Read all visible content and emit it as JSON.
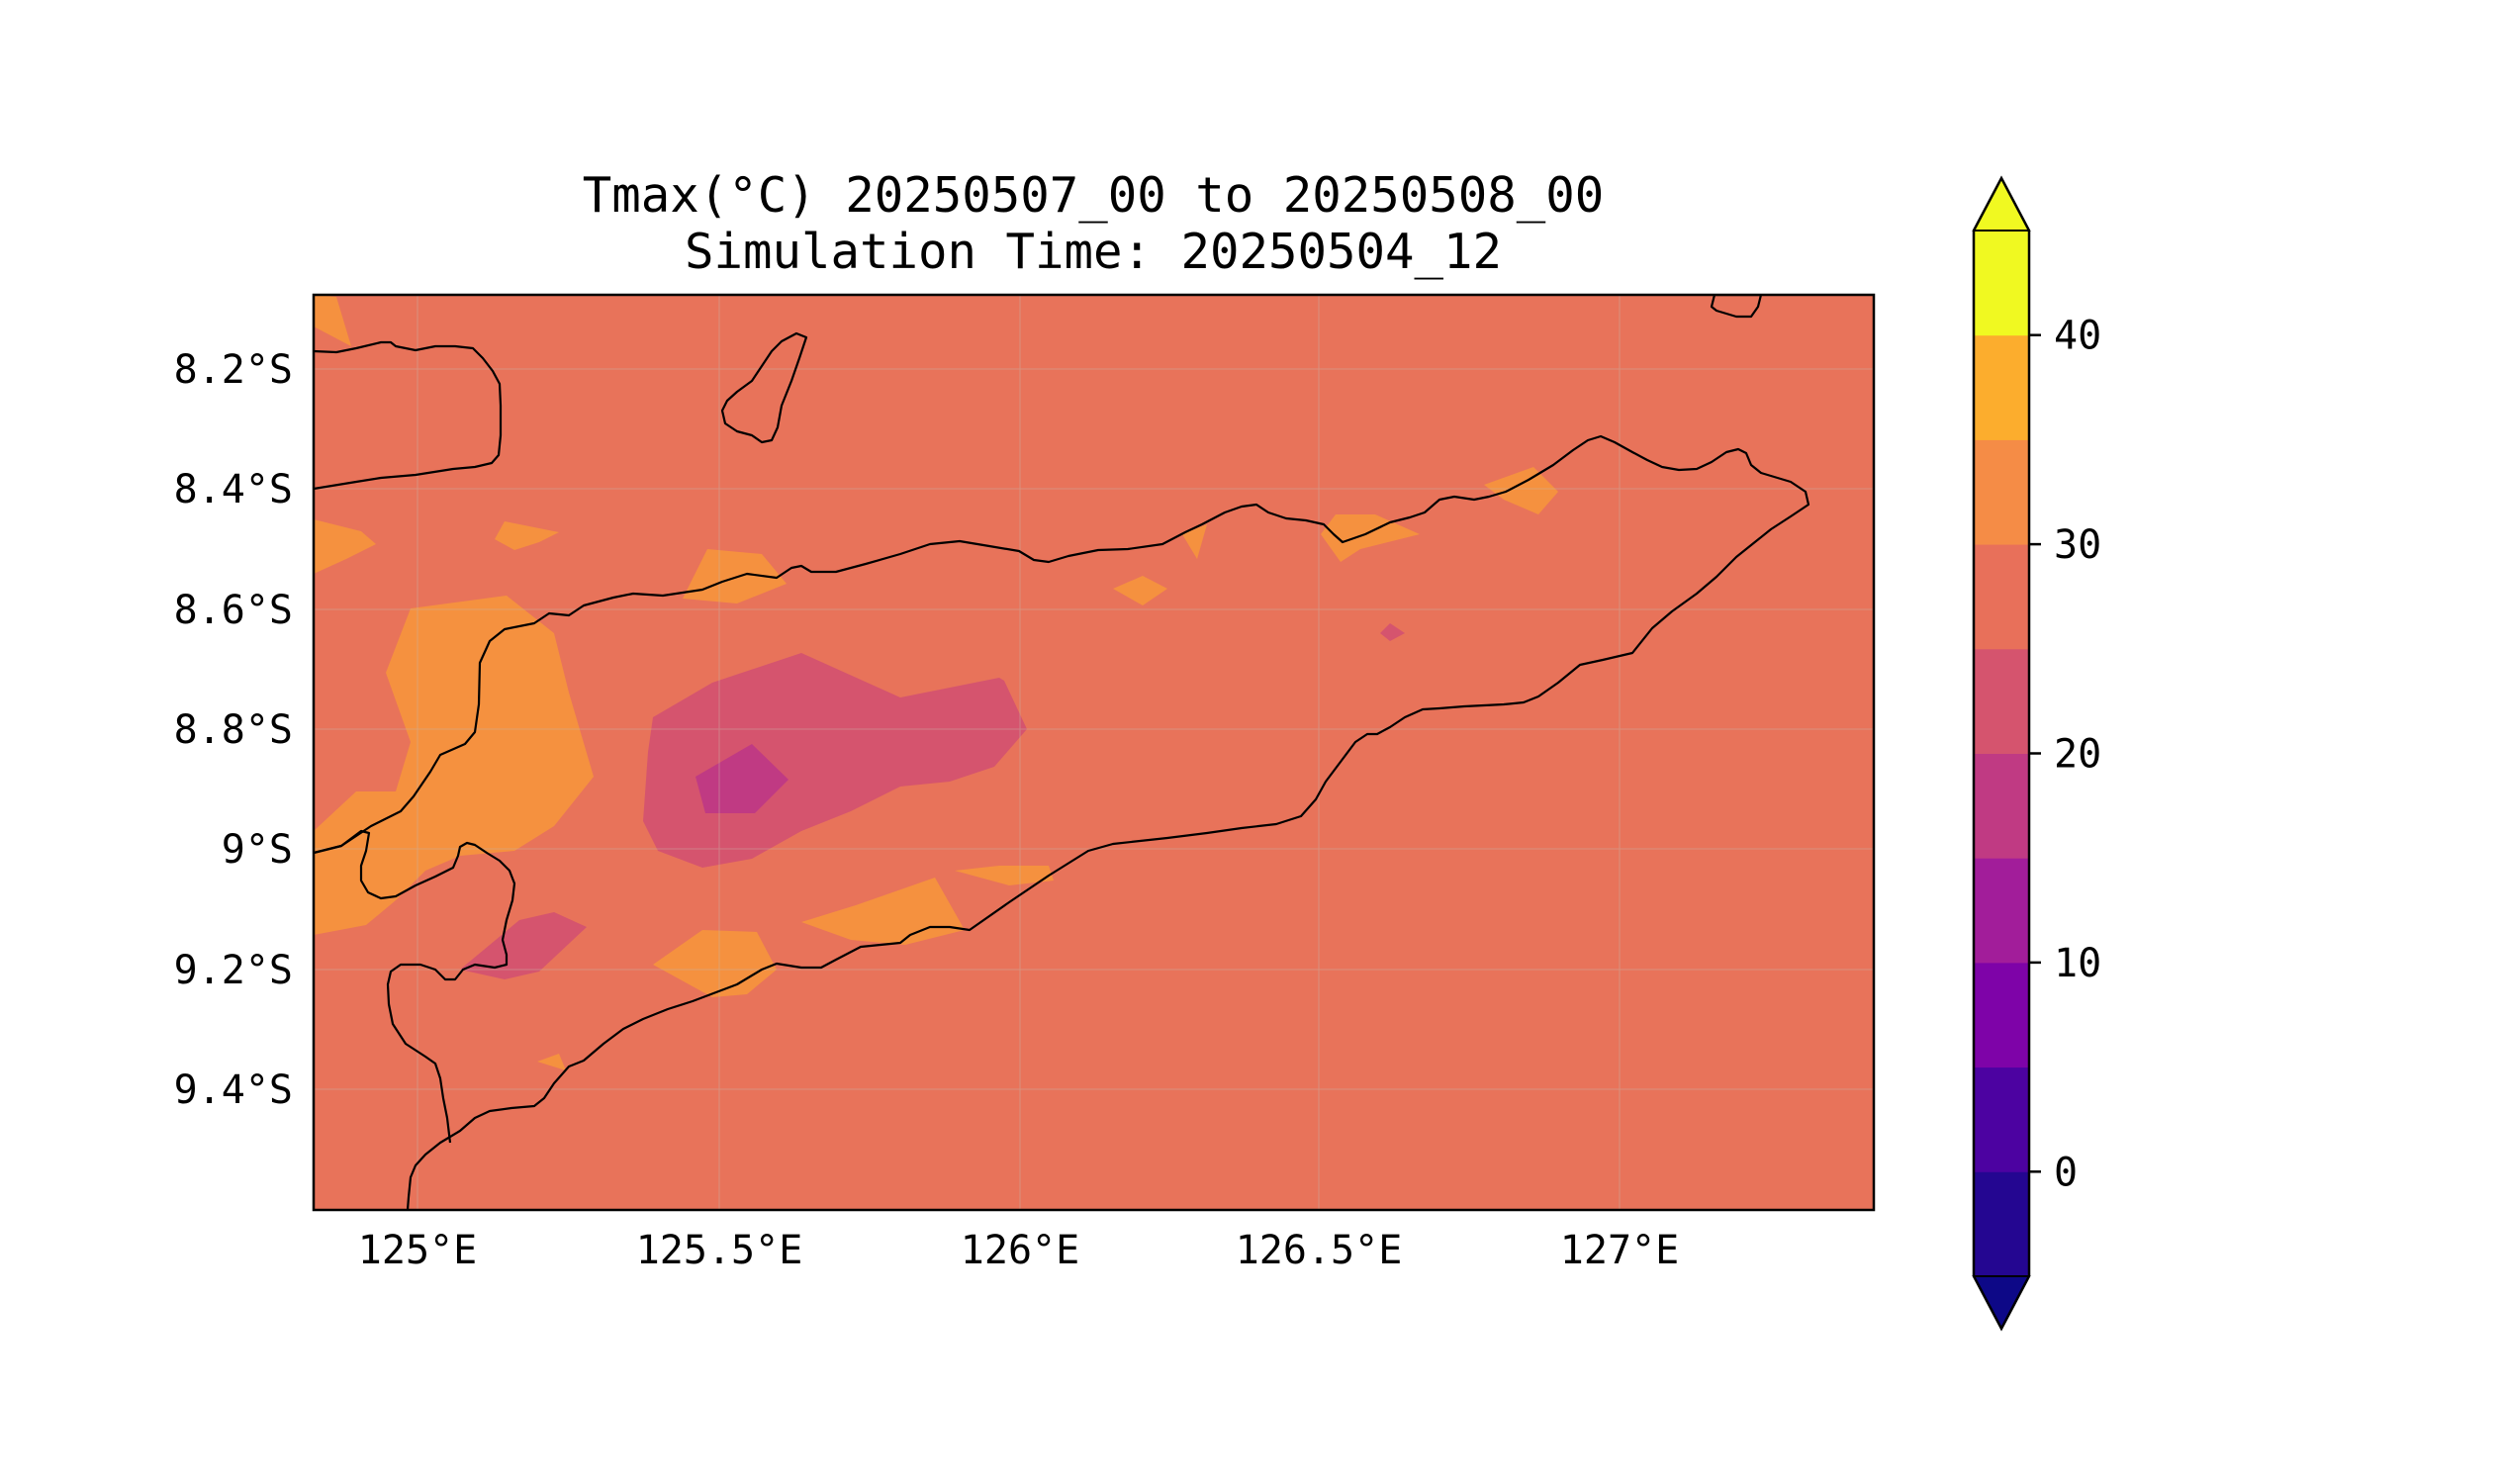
{
  "title": {
    "line1": "Tmax(°C) 20250507_00 to 20250508_00",
    "line2": "Simulation Time: 20250504_12"
  },
  "axes": {
    "xticks": [
      "125°E",
      "125.5°E",
      "126°E",
      "126.5°E",
      "127°E"
    ],
    "yticks": [
      "8.2°S",
      "8.4°S",
      "8.6°S",
      "8.8°S",
      "9°S",
      "9.2°S",
      "9.4°S"
    ],
    "lon_range": [
      124.83,
      127.42
    ],
    "lat_range": [
      -8.08,
      -9.6
    ],
    "grid": true
  },
  "colorbar": {
    "tick_labels": [
      "0",
      "10",
      "20",
      "30",
      "40"
    ],
    "levels": [
      -5,
      0,
      5,
      10,
      15,
      20,
      25,
      30,
      35,
      40,
      45
    ],
    "extend": "both",
    "colormap": "plasma",
    "colors": [
      "#240691",
      "#4c02a1",
      "#7e03a8",
      "#a21d9a",
      "#c03a83",
      "#d5546e",
      "#e8705a",
      "#f58c46",
      "#fcad2d",
      "#f0f921"
    ],
    "under_color": "#0d0887",
    "over_color": "#f0f921"
  },
  "chart_data": {
    "type": "heatmap",
    "variable": "Tmax(°C)",
    "background_level_range": [
      25,
      30
    ],
    "regions": [
      {
        "level_range": [
          30,
          35
        ],
        "where": "west, around 125.1°E 8.8–9.0°S"
      },
      {
        "level_range": [
          30,
          35
        ],
        "where": "northwest coast, around 124.85°E 8.5°S"
      },
      {
        "level_range": [
          20,
          25
        ],
        "where": "central-west, around 125.6°E 8.8°S"
      },
      {
        "level_range": [
          15,
          20
        ],
        "where": "central-west, around 125.55°E 8.85°S"
      },
      {
        "level_range": [
          20,
          25
        ],
        "where": "southwest, around 125.2°E 9.2°S"
      },
      {
        "level_range": [
          30,
          35
        ],
        "where": "south coast, around 125.5°E 9.2°S"
      },
      {
        "level_range": [
          30,
          35
        ],
        "where": "north coast, around 126.6–126.9°E 8.4–8.5°S"
      }
    ]
  }
}
